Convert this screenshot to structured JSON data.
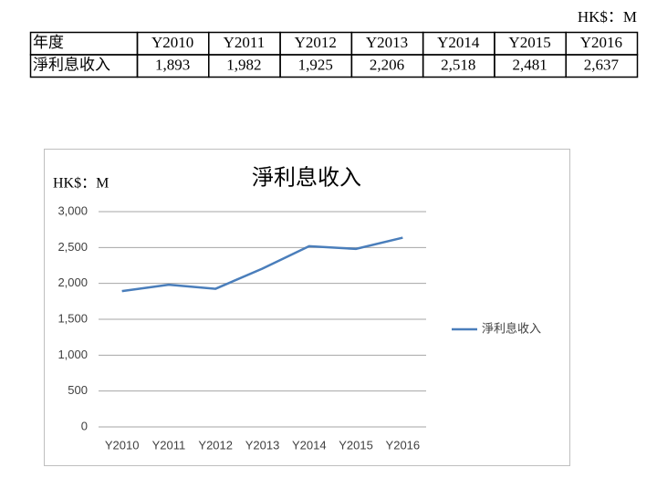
{
  "table": {
    "unit": "HK$：M",
    "rows": [
      [
        "年度",
        "Y2010",
        "Y2011",
        "Y2012",
        "Y2013",
        "Y2014",
        "Y2015",
        "Y2016"
      ],
      [
        "淨利息收入",
        "1,893",
        "1,982",
        "1,925",
        "2,206",
        "2,518",
        "2,481",
        "2,637"
      ]
    ]
  },
  "chart_data": {
    "type": "line",
    "title": "淨利息收入",
    "y_label": "HK$：M",
    "categories": [
      "Y2010",
      "Y2011",
      "Y2012",
      "Y2013",
      "Y2014",
      "Y2015",
      "Y2016"
    ],
    "series": [
      {
        "name": "淨利息收入",
        "color": "#4a7ebb",
        "values": [
          1893,
          1982,
          1925,
          2206,
          2518,
          2481,
          2637
        ]
      }
    ],
    "ylim": [
      0,
      3000
    ],
    "yticks": [
      0,
      500,
      {
        "value": 1000,
        "label": "1,000"
      },
      {
        "value": 1500,
        "label": "1,500"
      },
      {
        "value": 2000,
        "label": "2,000"
      },
      {
        "value": 2500,
        "label": "2,500"
      },
      {
        "value": 3000,
        "label": "3,000"
      }
    ],
    "grid": true,
    "legend": "right"
  }
}
